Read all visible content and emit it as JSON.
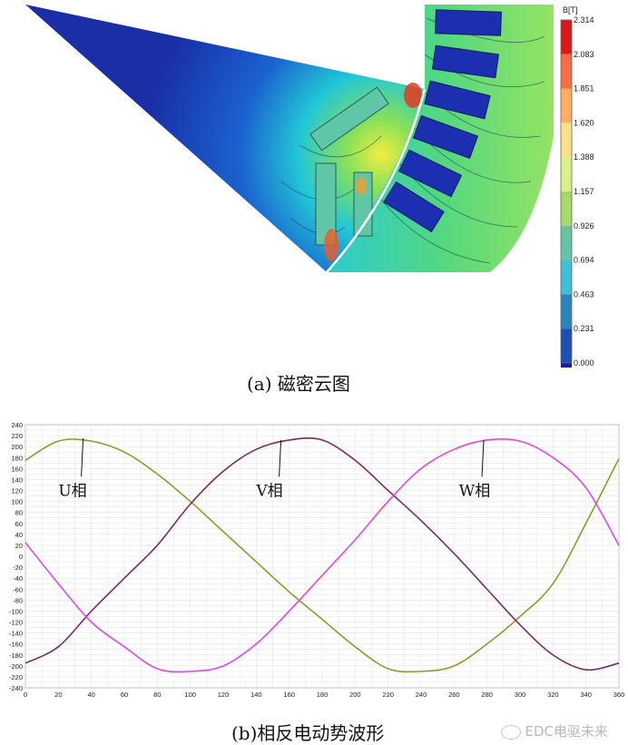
{
  "figure_a": {
    "caption": "(a) 磁密云图",
    "colorbar": {
      "unit": "B[T]",
      "ticks": [
        "2.314",
        "2.083",
        "1.851",
        "1.620",
        "1.388",
        "1.157",
        "0.926",
        "0.694",
        "0.463",
        "0.231",
        "0.000"
      ],
      "colors": [
        "#d7191c",
        "#f46d43",
        "#fdae61",
        "#fee08b",
        "#d9ef8b",
        "#a6d96a",
        "#66c2a5",
        "#3fbfd8",
        "#2b83ba",
        "#1f4fb5",
        "#1a1a9e"
      ]
    }
  },
  "figure_b": {
    "caption": "(b)相反电动势波形"
  },
  "chart_data": {
    "type": "line",
    "title": "",
    "xlabel": "",
    "ylabel": "",
    "xlim": [
      0,
      360
    ],
    "ylim": [
      -240,
      240
    ],
    "xticks": [
      0,
      20,
      40,
      60,
      80,
      100,
      120,
      140,
      160,
      180,
      200,
      220,
      240,
      260,
      280,
      300,
      320,
      340,
      360
    ],
    "yticks": [
      240,
      220,
      200,
      180,
      160,
      140,
      120,
      100,
      80,
      60,
      40,
      20,
      0,
      -20,
      -40,
      -60,
      -80,
      -100,
      -120,
      -140,
      -160,
      -180,
      -200,
      -220,
      -240
    ],
    "grid": true,
    "x": [
      0,
      20,
      40,
      60,
      80,
      100,
      120,
      140,
      160,
      180,
      200,
      220,
      240,
      260,
      280,
      300,
      320,
      340,
      360
    ],
    "series": [
      {
        "name": "U相",
        "color": "#8f9a2a",
        "values": [
          175,
          210,
          210,
          190,
          150,
          100,
          45,
          -10,
          -65,
          -115,
          -165,
          -205,
          -210,
          -200,
          -160,
          -110,
          -50,
          60,
          178
        ]
      },
      {
        "name": "V相",
        "color": "#7a2a66",
        "values": [
          -195,
          -165,
          -100,
          -40,
          20,
          95,
          155,
          195,
          212,
          212,
          175,
          120,
          65,
          5,
          -60,
          -125,
          -180,
          -207,
          -195
        ]
      },
      {
        "name": "W相",
        "color": "#e047e0",
        "values": [
          25,
          -50,
          -120,
          -165,
          -205,
          -210,
          -200,
          -160,
          -100,
          -35,
          30,
          100,
          160,
          195,
          212,
          210,
          180,
          125,
          20
        ]
      }
    ],
    "annotations": [
      {
        "text": "U相",
        "x": 35,
        "y": 215,
        "label_x": 20,
        "label_y": 110
      },
      {
        "text": "V相",
        "x": 155,
        "y": 212,
        "label_x": 140,
        "label_y": 110
      },
      {
        "text": "W相",
        "x": 278,
        "y": 212,
        "label_x": 263,
        "label_y": 110
      }
    ]
  },
  "watermark": "EDC电驱未来"
}
